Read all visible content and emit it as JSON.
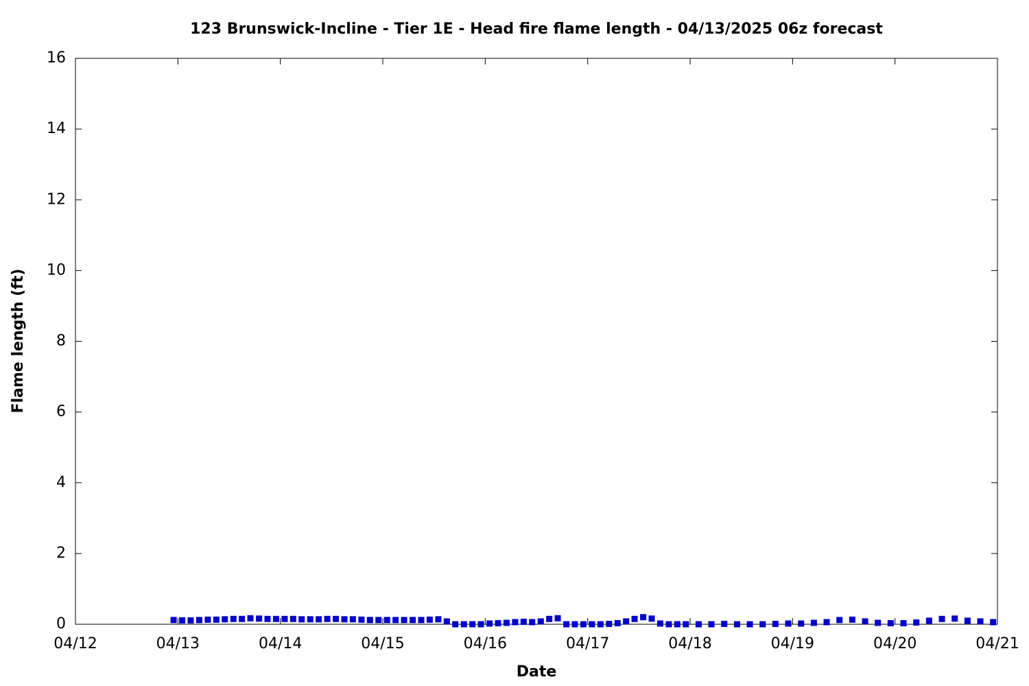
{
  "chart_data": {
    "type": "scatter",
    "title": "123 Brunswick-Incline - Tier 1E - Head fire flame length - 04/13/2025 06z forecast",
    "xlabel": "Date",
    "ylabel": "Flame length (ft)",
    "color": "#0000c8",
    "x": [
      12.958,
      13.042,
      13.125,
      13.208,
      13.292,
      13.375,
      13.458,
      13.542,
      13.625,
      13.708,
      13.792,
      13.875,
      13.958,
      14.042,
      14.125,
      14.208,
      14.292,
      14.375,
      14.458,
      14.542,
      14.625,
      14.708,
      14.792,
      14.875,
      14.958,
      15.042,
      15.125,
      15.208,
      15.292,
      15.375,
      15.458,
      15.542,
      15.625,
      15.708,
      15.792,
      15.875,
      15.958,
      16.042,
      16.125,
      16.208,
      16.292,
      16.375,
      16.458,
      16.542,
      16.625,
      16.708,
      16.792,
      16.875,
      16.958,
      17.042,
      17.125,
      17.208,
      17.292,
      17.375,
      17.458,
      17.542,
      17.625,
      17.708,
      17.792,
      17.875,
      17.958,
      18.083,
      18.208,
      18.333,
      18.458,
      18.583,
      18.708,
      18.833,
      18.958,
      19.083,
      19.208,
      19.333,
      19.458,
      19.583,
      19.708,
      19.833,
      19.958,
      20.083,
      20.208,
      20.333,
      20.458,
      20.583,
      20.708,
      20.833,
      20.958
    ],
    "values": [
      0.12,
      0.11,
      0.11,
      0.12,
      0.13,
      0.13,
      0.14,
      0.15,
      0.15,
      0.17,
      0.16,
      0.15,
      0.15,
      0.15,
      0.15,
      0.14,
      0.14,
      0.14,
      0.15,
      0.15,
      0.14,
      0.14,
      0.13,
      0.12,
      0.12,
      0.12,
      0.12,
      0.12,
      0.12,
      0.12,
      0.13,
      0.14,
      0.08,
      0,
      0,
      0,
      0,
      0.02,
      0.03,
      0.04,
      0.06,
      0.07,
      0.06,
      0.08,
      0.15,
      0.17,
      0,
      0,
      0,
      0,
      0,
      0.01,
      0.03,
      0.08,
      0.15,
      0.2,
      0.16,
      0.02,
      0,
      0,
      0,
      0,
      0,
      0.01,
      0,
      0,
      0,
      0.01,
      0.02,
      0.02,
      0.04,
      0.06,
      0.12,
      0.13,
      0.08,
      0.04,
      0.03,
      0.03,
      0.05,
      0.1,
      0.15,
      0.16,
      0.1,
      0.08,
      0.06
    ],
    "xlim": [
      12,
      21
    ],
    "xticks": [
      {
        "value": 12,
        "label": "04/12"
      },
      {
        "value": 13,
        "label": "04/13"
      },
      {
        "value": 14,
        "label": "04/14"
      },
      {
        "value": 15,
        "label": "04/15"
      },
      {
        "value": 16,
        "label": "04/16"
      },
      {
        "value": 17,
        "label": "04/17"
      },
      {
        "value": 18,
        "label": "04/18"
      },
      {
        "value": 19,
        "label": "04/19"
      },
      {
        "value": 20,
        "label": "04/20"
      },
      {
        "value": 21,
        "label": "04/21"
      }
    ],
    "ylim": [
      0,
      16
    ],
    "yticks": [
      0,
      2,
      4,
      6,
      8,
      10,
      12,
      14,
      16
    ]
  }
}
